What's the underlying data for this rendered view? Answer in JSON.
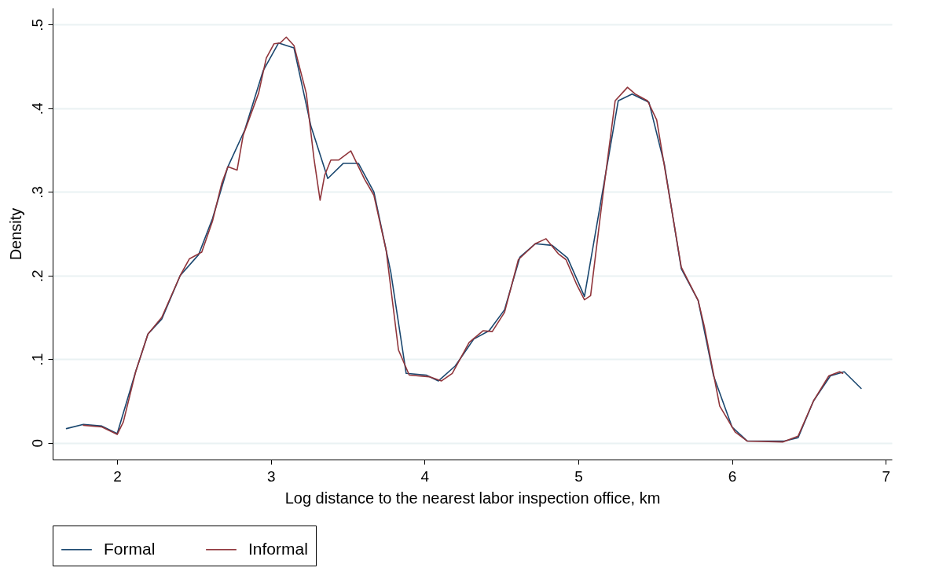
{
  "chart_data": {
    "type": "line",
    "xlabel": "Log distance to the nearest labor inspection office, km",
    "ylabel": "Density",
    "xlim": [
      1.58,
      7.04
    ],
    "ylim": [
      -0.02,
      0.52
    ],
    "xticks": [
      2,
      3,
      4,
      5,
      6,
      7
    ],
    "yticks": [
      0,
      {
        "value": 0.1,
        "label": ".1"
      },
      {
        "value": 0.2,
        "label": ".2"
      },
      {
        "value": 0.3,
        "label": ".3"
      },
      {
        "value": 0.4,
        "label": ".4"
      },
      {
        "value": 0.5,
        "label": ".5"
      }
    ],
    "grid": "y",
    "legend": "bottom",
    "line_style": "solid",
    "series": [
      {
        "name": "Formal",
        "color": "#1a476f",
        "x": [
          1.67,
          1.78,
          1.9,
          2.0,
          2.12,
          2.2,
          2.29,
          2.41,
          2.53,
          2.62,
          2.72,
          2.83,
          2.95,
          3.05,
          3.15,
          3.26,
          3.37,
          3.47,
          3.57,
          3.67,
          3.78,
          3.88,
          4.01,
          4.09,
          4.2,
          4.32,
          4.42,
          4.52,
          4.62,
          4.72,
          4.83,
          4.93,
          5.04,
          5.12,
          5.26,
          5.35,
          5.46,
          5.56,
          5.67,
          5.78,
          5.88,
          6.0,
          6.1,
          6.34,
          6.43,
          6.53,
          6.64,
          6.73,
          6.84
        ],
        "values": [
          0.017,
          0.022,
          0.02,
          0.011,
          0.085,
          0.13,
          0.148,
          0.2,
          0.225,
          0.268,
          0.33,
          0.374,
          0.445,
          0.478,
          0.472,
          0.379,
          0.316,
          0.334,
          0.334,
          0.3,
          0.204,
          0.083,
          0.081,
          0.074,
          0.092,
          0.124,
          0.134,
          0.159,
          0.222,
          0.238,
          0.236,
          0.221,
          0.175,
          0.26,
          0.409,
          0.417,
          0.407,
          0.333,
          0.208,
          0.17,
          0.08,
          0.019,
          0.002,
          0.002,
          0.006,
          0.05,
          0.08,
          0.085,
          0.065
        ]
      },
      {
        "name": "Informal",
        "color": "#90353b",
        "x": [
          1.78,
          1.9,
          2.0,
          2.04,
          2.12,
          2.2,
          2.29,
          2.41,
          2.47,
          2.55,
          2.62,
          2.68,
          2.72,
          2.78,
          2.82,
          2.92,
          2.97,
          3.02,
          3.06,
          3.1,
          3.15,
          3.23,
          3.28,
          3.32,
          3.35,
          3.39,
          3.44,
          3.52,
          3.61,
          3.67,
          3.75,
          3.83,
          3.9,
          4.03,
          4.11,
          4.18,
          4.29,
          4.38,
          4.44,
          4.52,
          4.61,
          4.72,
          4.79,
          4.87,
          4.92,
          4.99,
          5.04,
          5.08,
          5.16,
          5.24,
          5.32,
          5.37,
          5.45,
          5.51,
          5.67,
          5.78,
          5.82,
          5.92,
          6.02,
          6.1,
          6.33,
          6.43,
          6.53,
          6.63,
          6.7,
          6.72
        ],
        "values": [
          0.021,
          0.019,
          0.01,
          0.025,
          0.085,
          0.13,
          0.15,
          0.2,
          0.22,
          0.228,
          0.265,
          0.31,
          0.33,
          0.326,
          0.368,
          0.418,
          0.46,
          0.477,
          0.478,
          0.485,
          0.475,
          0.418,
          0.34,
          0.29,
          0.32,
          0.338,
          0.338,
          0.349,
          0.315,
          0.296,
          0.23,
          0.111,
          0.081,
          0.079,
          0.074,
          0.083,
          0.12,
          0.134,
          0.133,
          0.156,
          0.219,
          0.238,
          0.244,
          0.226,
          0.219,
          0.189,
          0.171,
          0.176,
          0.296,
          0.409,
          0.425,
          0.417,
          0.409,
          0.386,
          0.21,
          0.17,
          0.139,
          0.044,
          0.013,
          0.002,
          0.001,
          0.008,
          0.05,
          0.08,
          0.085,
          0.083
        ]
      }
    ]
  }
}
